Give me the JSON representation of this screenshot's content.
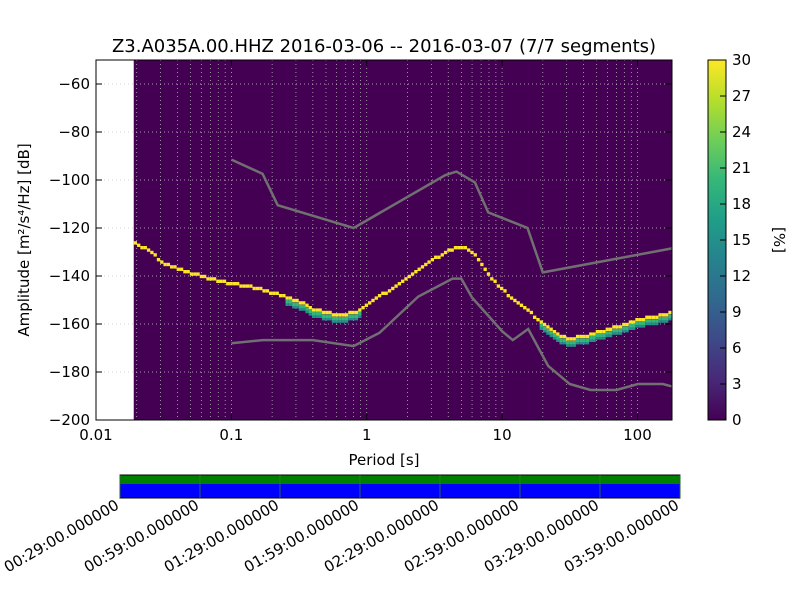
{
  "chart_data": [
    {
      "type": "heatmap",
      "title": "Z3.A035A.00.HHZ   2016-03-06 -- 2016-03-07  (7/7 segments)",
      "xlabel": "Period [s]",
      "ylabel": "Amplitude [m²/s⁴/Hz] [dB]",
      "x_scale": "log",
      "xlim": [
        0.01,
        180
      ],
      "ylim": [
        -200,
        -50
      ],
      "x_ticks": [
        0.01,
        0.1,
        1,
        10,
        100
      ],
      "x_tick_labels": [
        "0.01",
        "0.1",
        "1",
        "10",
        "100"
      ],
      "y_ticks": [
        -200,
        -180,
        -160,
        -140,
        -120,
        -100,
        -80,
        -60
      ],
      "y_tick_labels": [
        "−200",
        "−180",
        "−160",
        "−140",
        "−120",
        "−100",
        "−80",
        "−60"
      ],
      "grid": true,
      "data_x_start": 0.019,
      "colors": {
        "background": "#440154",
        "peak": "#fde725",
        "mid": "#35b779",
        "low": "#21918c",
        "noise_model": "#707070"
      },
      "psd_curve": [
        {
          "x": 0.019,
          "y": -126
        },
        {
          "x": 0.022,
          "y": -128
        },
        {
          "x": 0.025,
          "y": -130
        },
        {
          "x": 0.03,
          "y": -134
        },
        {
          "x": 0.04,
          "y": -137
        },
        {
          "x": 0.06,
          "y": -140
        },
        {
          "x": 0.08,
          "y": -142
        },
        {
          "x": 0.1,
          "y": -143
        },
        {
          "x": 0.15,
          "y": -145
        },
        {
          "x": 0.2,
          "y": -147
        },
        {
          "x": 0.3,
          "y": -150
        },
        {
          "x": 0.4,
          "y": -154
        },
        {
          "x": 0.5,
          "y": -155
        },
        {
          "x": 0.6,
          "y": -156
        },
        {
          "x": 0.8,
          "y": -155
        },
        {
          "x": 1.0,
          "y": -151
        },
        {
          "x": 1.5,
          "y": -145
        },
        {
          "x": 2,
          "y": -140
        },
        {
          "x": 3,
          "y": -133
        },
        {
          "x": 4,
          "y": -129
        },
        {
          "x": 5,
          "y": -127.5
        },
        {
          "x": 6,
          "y": -130
        },
        {
          "x": 7,
          "y": -135
        },
        {
          "x": 8,
          "y": -140
        },
        {
          "x": 10,
          "y": -146
        },
        {
          "x": 15,
          "y": -154
        },
        {
          "x": 20,
          "y": -160
        },
        {
          "x": 25,
          "y": -164
        },
        {
          "x": 30,
          "y": -166
        },
        {
          "x": 40,
          "y": -165
        },
        {
          "x": 60,
          "y": -162
        },
        {
          "x": 80,
          "y": -160
        },
        {
          "x": 100,
          "y": -158
        },
        {
          "x": 150,
          "y": -156
        },
        {
          "x": 180,
          "y": -155
        }
      ],
      "nhnm": [
        {
          "x": 0.1,
          "y": -91.5
        },
        {
          "x": 0.17,
          "y": -97.4
        },
        {
          "x": 0.22,
          "y": -110.5
        },
        {
          "x": 0.8,
          "y": -120
        },
        {
          "x": 3.8,
          "y": -98
        },
        {
          "x": 4.6,
          "y": -96.5
        },
        {
          "x": 6.3,
          "y": -101
        },
        {
          "x": 7.9,
          "y": -113.5
        },
        {
          "x": 15.4,
          "y": -120
        },
        {
          "x": 20,
          "y": -138.5
        },
        {
          "x": 180,
          "y": -128.5
        }
      ],
      "nlnm": [
        {
          "x": 0.1,
          "y": -168
        },
        {
          "x": 0.17,
          "y": -166.7
        },
        {
          "x": 0.4,
          "y": -166.7
        },
        {
          "x": 0.8,
          "y": -169.2
        },
        {
          "x": 1.24,
          "y": -163.7
        },
        {
          "x": 2.4,
          "y": -148.6
        },
        {
          "x": 4.3,
          "y": -141.1
        },
        {
          "x": 5,
          "y": -141.1
        },
        {
          "x": 6,
          "y": -149
        },
        {
          "x": 10,
          "y": -163
        },
        {
          "x": 12,
          "y": -166.7
        },
        {
          "x": 15.6,
          "y": -162.1
        },
        {
          "x": 21.9,
          "y": -177.5
        },
        {
          "x": 31.6,
          "y": -185
        },
        {
          "x": 45,
          "y": -187.5
        },
        {
          "x": 70,
          "y": -187.5
        },
        {
          "x": 101,
          "y": -185
        },
        {
          "x": 154,
          "y": -185
        },
        {
          "x": 180,
          "y": -186
        }
      ]
    },
    {
      "type": "heatmap",
      "label": "[%]",
      "range": [
        0,
        30
      ],
      "ticks": [
        0,
        3,
        6,
        9,
        12,
        15,
        18,
        21,
        24,
        27,
        30
      ],
      "tick_labels": [
        "0",
        "3",
        "6",
        "9",
        "12",
        "15",
        "18",
        "21",
        "24",
        "27",
        "30"
      ],
      "colormap": [
        "#440154",
        "#482878",
        "#3e4989",
        "#31688e",
        "#26828e",
        "#1f9e89",
        "#35b779",
        "#6ece58",
        "#b5de2b",
        "#fde725"
      ]
    },
    {
      "type": "bar",
      "tick_labels": [
        "00:29:00.000000",
        "00:59:00.000000",
        "01:29:00.000000",
        "01:59:00.000000",
        "02:29:00.000000",
        "02:59:00.000000",
        "03:29:00.000000",
        "03:59:00.000000"
      ],
      "bands": [
        {
          "color": "#008000"
        },
        {
          "color": "#0000ff"
        }
      ]
    }
  ]
}
